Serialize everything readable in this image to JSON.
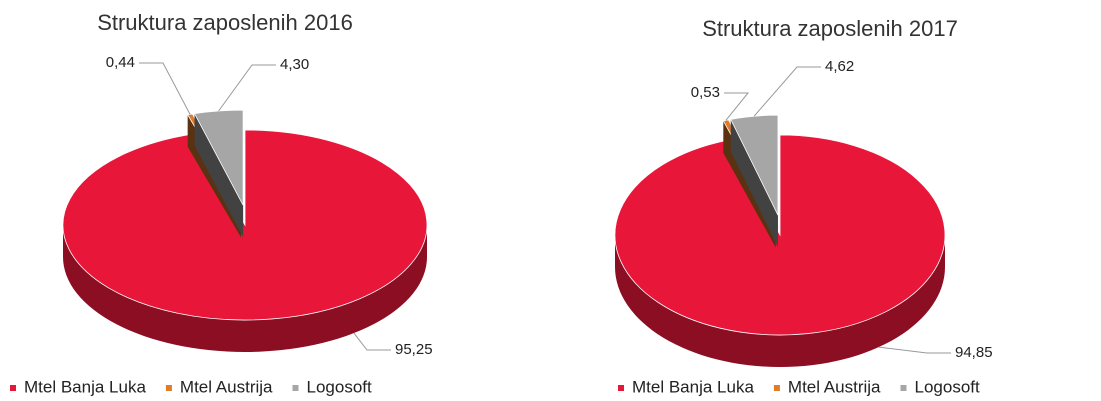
{
  "chart_data": [
    {
      "type": "pie",
      "title": "Struktura zaposlenih 2016",
      "categories": [
        "Mtel Banja Luka",
        "Mtel Austrija",
        "Logosoft"
      ],
      "values": [
        95.25,
        0.44,
        4.3
      ],
      "value_labels": [
        "95,25",
        "0,44",
        "4,30"
      ],
      "colors": [
        "#e8173a",
        "#e07b2a",
        "#a6a6a6"
      ]
    },
    {
      "type": "pie",
      "title": "Struktura zaposlenih 2017",
      "categories": [
        "Mtel Banja Luka",
        "Mtel Austrija",
        "Logosoft"
      ],
      "values": [
        94.85,
        0.53,
        4.62
      ],
      "value_labels": [
        "94,85",
        "0,53",
        "4,62"
      ],
      "colors": [
        "#e8173a",
        "#e07b2a",
        "#a6a6a6"
      ]
    }
  ]
}
